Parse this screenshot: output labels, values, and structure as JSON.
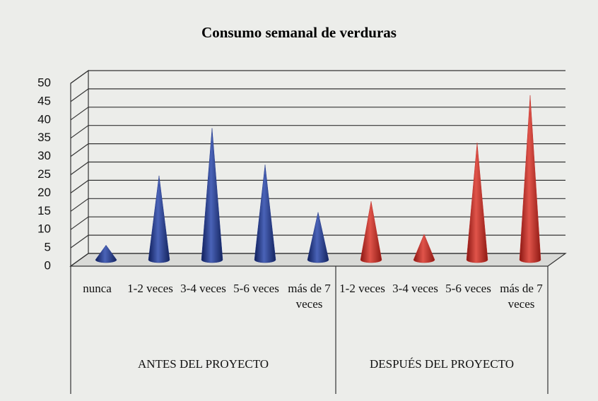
{
  "chart_data": {
    "type": "cone",
    "title": "Consumo semanal de verduras",
    "ylim": [
      0,
      50
    ],
    "yticks": [
      0,
      5,
      10,
      15,
      20,
      25,
      30,
      35,
      40,
      45,
      50
    ],
    "grid": true,
    "groups": [
      {
        "name": "ANTES DEL PROYECTO",
        "color": "#24398a",
        "categories": [
          "nunca",
          "1-2 veces",
          "3-4 veces",
          "5-6 veces",
          "más de 7 veces"
        ],
        "values": [
          4,
          23,
          36,
          26,
          13
        ]
      },
      {
        "name": "DESPUÉS DEL PROYECTO",
        "color": "#c3302b",
        "categories": [
          "1-2 veces",
          "3-4 veces",
          "5-6 veces",
          "más de 7 veces"
        ],
        "values": [
          16,
          7,
          32,
          45
        ]
      }
    ]
  }
}
